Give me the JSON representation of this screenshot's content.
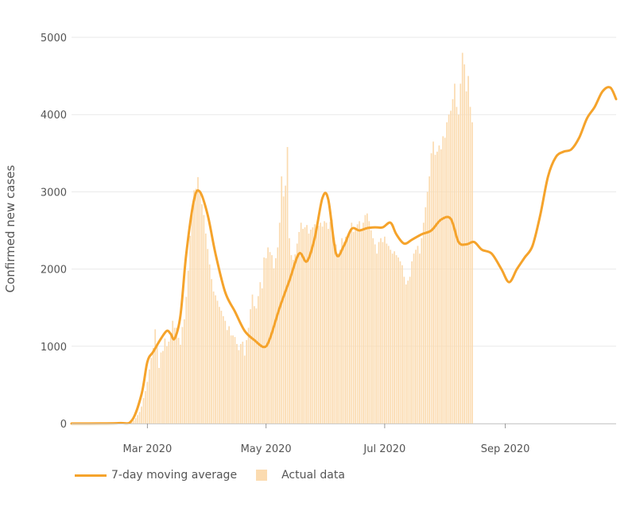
{
  "colors": {
    "line": "#f5a32b",
    "bars": "#fbdbb0",
    "grid": "#e9e9e9",
    "text": "#555555"
  },
  "legend": {
    "line_label": "7-day moving average",
    "bar_label": "Actual data"
  },
  "chart_data": {
    "type": "bar",
    "title": "",
    "xlabel": "",
    "ylabel": "Confirmed new cases",
    "ylim": [
      0,
      5000
    ],
    "xlim": [
      "2020-01-22",
      "2020-10-28"
    ],
    "y_ticks": [
      0,
      1000,
      2000,
      3000,
      4000,
      5000
    ],
    "x_ticks": [
      {
        "date": "2020-03-01",
        "label": "Mar 2020"
      },
      {
        "date": "2020-05-01",
        "label": "May 2020"
      },
      {
        "date": "2020-07-01",
        "label": "Jul 2020"
      },
      {
        "date": "2020-09-01",
        "label": "Sep 2020"
      }
    ],
    "grid": true,
    "legend_position": "bottom-left",
    "series": [
      {
        "name": "7-day moving average",
        "type": "line",
        "points": [
          [
            "2020-01-22",
            0
          ],
          [
            "2020-02-15",
            5
          ],
          [
            "2020-02-22",
            40
          ],
          [
            "2020-02-27",
            380
          ],
          [
            "2020-03-01",
            800
          ],
          [
            "2020-03-04",
            930
          ],
          [
            "2020-03-08",
            1100
          ],
          [
            "2020-03-11",
            1200
          ],
          [
            "2020-03-13",
            1160
          ],
          [
            "2020-03-15",
            1100
          ],
          [
            "2020-03-18",
            1400
          ],
          [
            "2020-03-21",
            2200
          ],
          [
            "2020-03-25",
            2900
          ],
          [
            "2020-03-28",
            3000
          ],
          [
            "2020-04-01",
            2700
          ],
          [
            "2020-04-05",
            2200
          ],
          [
            "2020-04-10",
            1700
          ],
          [
            "2020-04-15",
            1450
          ],
          [
            "2020-04-20",
            1200
          ],
          [
            "2020-04-25",
            1080
          ],
          [
            "2020-04-30",
            990
          ],
          [
            "2020-05-03",
            1100
          ],
          [
            "2020-05-08",
            1500
          ],
          [
            "2020-05-13",
            1850
          ],
          [
            "2020-05-18",
            2200
          ],
          [
            "2020-05-22",
            2100
          ],
          [
            "2020-05-26",
            2400
          ],
          [
            "2020-05-30",
            2920
          ],
          [
            "2020-06-02",
            2900
          ],
          [
            "2020-06-06",
            2200
          ],
          [
            "2020-06-10",
            2300
          ],
          [
            "2020-06-14",
            2520
          ],
          [
            "2020-06-18",
            2500
          ],
          [
            "2020-06-22",
            2530
          ],
          [
            "2020-06-26",
            2540
          ],
          [
            "2020-06-30",
            2540
          ],
          [
            "2020-07-04",
            2600
          ],
          [
            "2020-07-07",
            2450
          ],
          [
            "2020-07-11",
            2330
          ],
          [
            "2020-07-15",
            2380
          ],
          [
            "2020-07-20",
            2450
          ],
          [
            "2020-07-25",
            2500
          ],
          [
            "2020-07-30",
            2640
          ],
          [
            "2020-08-04",
            2650
          ],
          [
            "2020-08-08",
            2350
          ],
          [
            "2020-08-12",
            2320
          ],
          [
            "2020-08-16",
            2350
          ],
          [
            "2020-08-20",
            2250
          ],
          [
            "2020-08-25",
            2200
          ],
          [
            "2020-08-30",
            2000
          ],
          [
            "2020-09-03",
            1830
          ],
          [
            "2020-09-07",
            2000
          ],
          [
            "2020-09-11",
            2150
          ],
          [
            "2020-09-15",
            2300
          ],
          [
            "2020-09-19",
            2700
          ],
          [
            "2020-09-23",
            3200
          ],
          [
            "2020-09-27",
            3450
          ],
          [
            "2020-10-01",
            3520
          ],
          [
            "2020-10-05",
            3550
          ],
          [
            "2020-10-09",
            3700
          ],
          [
            "2020-10-13",
            3950
          ],
          [
            "2020-10-17",
            4100
          ],
          [
            "2020-10-21",
            4300
          ],
          [
            "2020-10-25",
            4350
          ],
          [
            "2020-10-28",
            4200
          ]
        ]
      },
      {
        "name": "Actual data",
        "type": "bar",
        "from_date": "2020-01-22",
        "values": [
          0,
          0,
          0,
          0,
          0,
          0,
          0,
          0,
          0,
          0,
          0,
          0,
          0,
          0,
          0,
          0,
          0,
          0,
          0,
          0,
          0,
          0,
          0,
          0,
          1,
          2,
          3,
          5,
          8,
          10,
          15,
          20,
          40,
          70,
          110,
          150,
          220,
          330,
          420,
          540,
          700,
          850,
          980,
          1220,
          1020,
          720,
          920,
          940,
          1100,
          1000,
          1060,
          1160,
          1330,
          1240,
          1240,
          1110,
          1020,
          1250,
          1350,
          1640,
          1980,
          2430,
          2780,
          3020,
          3040,
          3190,
          3020,
          2840,
          2700,
          2460,
          2260,
          2060,
          1870,
          1710,
          1660,
          1590,
          1510,
          1460,
          1390,
          1330,
          1210,
          1260,
          1140,
          1140,
          1120,
          1030,
          950,
          1030,
          1060,
          880,
          1080,
          1240,
          1480,
          1670,
          1520,
          1490,
          1650,
          1830,
          1750,
          2150,
          2140,
          2280,
          2220,
          2180,
          2010,
          2140,
          2280,
          2600,
          3200,
          2940,
          3080,
          3580,
          2400,
          2180,
          2120,
          2190,
          2330,
          2480,
          2600,
          2520,
          2540,
          2570,
          2460,
          2510,
          2540,
          2580,
          2490,
          2560,
          2600,
          2550,
          2620,
          2600,
          2520,
          2610,
          2640,
          2400,
          2320,
          2200,
          2250,
          2400,
          2350,
          2420,
          2390,
          2500,
          2600,
          2480,
          2520,
          2580,
          2620,
          2500,
          2600,
          2700,
          2720,
          2620,
          2500,
          2400,
          2320,
          2200,
          2350,
          2400,
          2350,
          2420,
          2330,
          2300,
          2250,
          2200,
          2230,
          2180,
          2150,
          2100,
          2050,
          1900,
          1800,
          1850,
          1900,
          2100,
          2200,
          2250,
          2300,
          2200,
          2400,
          2600,
          2800,
          3000,
          3200,
          3500,
          3650,
          3480,
          3520,
          3600,
          3550,
          3720,
          3700,
          3900,
          4000,
          4050,
          4200,
          4400,
          4100,
          4000,
          4400,
          4800,
          4650,
          4300,
          4500,
          4100,
          3900
        ]
      }
    ]
  }
}
